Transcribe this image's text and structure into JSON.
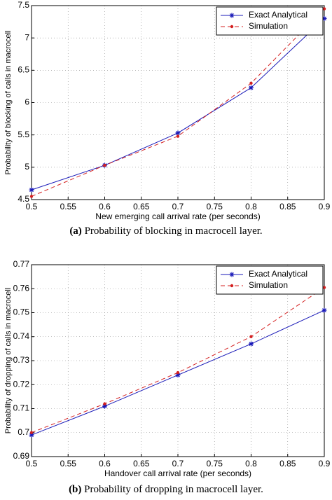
{
  "chart_data": [
    {
      "type": "line",
      "caption_label": "(a)",
      "caption": "Probability of blocking in macrocell layer.",
      "xlabel": "New emerging call arrival rate (per seconds)",
      "ylabel": "Probability of blocking of calls in macrocell",
      "x": [
        0.5,
        0.6,
        0.7,
        0.8,
        0.9
      ],
      "series": [
        {
          "name": "Exact Analytical",
          "color": "#1a1ab8",
          "line_style": "solid",
          "marker": "star",
          "values": [
            4.65,
            5.03,
            5.53,
            6.23,
            7.3
          ]
        },
        {
          "name": "Simulation",
          "color": "#d42020",
          "line_style": "dashed",
          "marker": "dot",
          "values": [
            4.55,
            5.03,
            5.48,
            6.3,
            7.45
          ]
        }
      ],
      "xlim": [
        0.5,
        0.9
      ],
      "xticks": [
        0.5,
        0.55,
        0.6,
        0.65,
        0.7,
        0.75,
        0.8,
        0.85,
        0.9
      ],
      "ylim": [
        4.5,
        7.5
      ],
      "yticks": [
        4.5,
        5,
        5.5,
        6,
        6.5,
        7,
        7.5
      ],
      "grid": true,
      "legend": "upper right"
    },
    {
      "type": "line",
      "caption_label": "(b)",
      "caption": "Probability of dropping in macrocell layer.",
      "xlabel": "Handover call arrival rate (per seconds)",
      "ylabel": "Probability of dropping of calls in macrocell",
      "x": [
        0.5,
        0.6,
        0.7,
        0.8,
        0.9
      ],
      "series": [
        {
          "name": "Exact Analytical",
          "color": "#1a1ab8",
          "line_style": "solid",
          "marker": "star",
          "values": [
            0.699,
            0.711,
            0.724,
            0.737,
            0.751
          ]
        },
        {
          "name": "Simulation",
          "color": "#d42020",
          "line_style": "dashed",
          "marker": "dot",
          "values": [
            0.7,
            0.712,
            0.725,
            0.74,
            0.7605
          ]
        }
      ],
      "xlim": [
        0.5,
        0.9
      ],
      "xticks": [
        0.5,
        0.55,
        0.6,
        0.65,
        0.7,
        0.75,
        0.8,
        0.85,
        0.9
      ],
      "ylim": [
        0.69,
        0.77
      ],
      "yticks": [
        0.69,
        0.7,
        0.71,
        0.72,
        0.73,
        0.74,
        0.75,
        0.76,
        0.77
      ],
      "grid": true,
      "legend": "upper right"
    }
  ]
}
